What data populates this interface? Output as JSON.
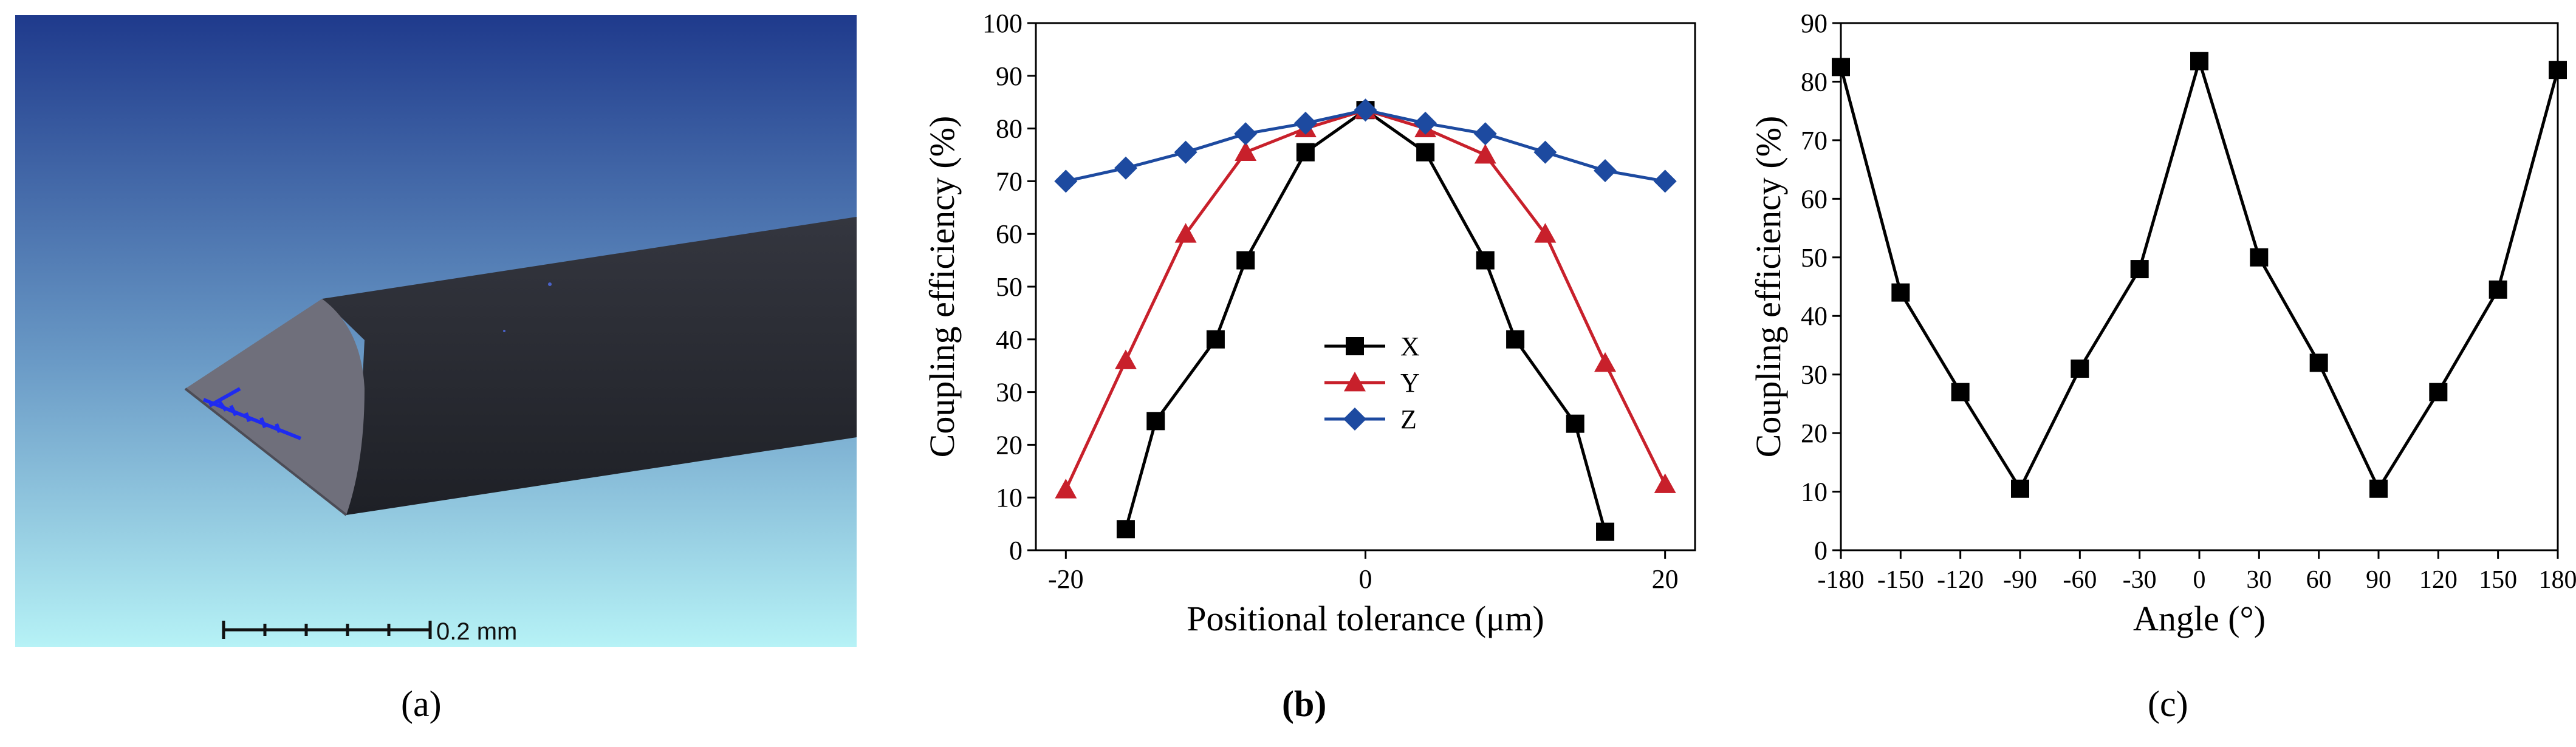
{
  "panel_labels": {
    "a": "(a)",
    "b": "(b)",
    "c": "(c)"
  },
  "panel_a": {
    "scale_bar_label": "0.2 mm",
    "colors": {
      "sky_top": "#1f3a8c",
      "sky_bottom": "#b6f2f6",
      "fiber_body": "#2a2c33",
      "fiber_face": "#6f6f7b",
      "marker": "#1f2bf0"
    }
  },
  "chart_data": [
    {
      "type": "line",
      "title": "",
      "xlabel": "Positional tolerance (μm)",
      "ylabel": "Coupling efficiency (%)",
      "xlim": [
        -22,
        22
      ],
      "ylim": [
        0,
        100
      ],
      "xticks": [
        -20,
        0,
        20
      ],
      "yticks": [
        0,
        10,
        20,
        30,
        40,
        50,
        60,
        70,
        80,
        90,
        100
      ],
      "legend_position": "center",
      "series": [
        {
          "name": "X",
          "marker": "square",
          "color": "#000000",
          "x": [
            -16,
            -14,
            -10,
            -8,
            -4,
            0,
            4,
            8,
            10,
            14,
            16
          ],
          "y": [
            4,
            24.5,
            40,
            55,
            75.5,
            83.5,
            75.5,
            55,
            40,
            24,
            3.5
          ]
        },
        {
          "name": "Y",
          "marker": "triangle",
          "color": "#c8202b",
          "x": [
            -20,
            -16,
            -12,
            -8,
            -4,
            0,
            4,
            8,
            12,
            16,
            20
          ],
          "y": [
            11.5,
            36,
            60,
            75.5,
            80,
            83.5,
            80,
            75,
            60,
            35.5,
            12.5
          ]
        },
        {
          "name": "Z",
          "marker": "diamond",
          "color": "#1d4aa0",
          "x": [
            -20,
            -16,
            -12,
            -8,
            -4,
            0,
            4,
            8,
            12,
            16,
            20
          ],
          "y": [
            70,
            72.5,
            75.5,
            79,
            81,
            83.5,
            81,
            79,
            75.5,
            72,
            70
          ]
        }
      ]
    },
    {
      "type": "line",
      "title": "",
      "xlabel": "Angle (°)",
      "ylabel": "Coupling efficiency (%)",
      "xlim": [
        -180,
        180
      ],
      "ylim": [
        0,
        90
      ],
      "xticks": [
        -180,
        -150,
        -120,
        -90,
        -60,
        -30,
        0,
        30,
        60,
        90,
        120,
        150,
        180
      ],
      "yticks": [
        0,
        10,
        20,
        30,
        40,
        50,
        60,
        70,
        80,
        90
      ],
      "series": [
        {
          "name": "Coupling efficiency",
          "marker": "square",
          "color": "#000000",
          "x": [
            -180,
            -150,
            -120,
            -90,
            -60,
            -30,
            0,
            30,
            60,
            90,
            120,
            150,
            180
          ],
          "y": [
            82.5,
            44,
            27,
            10.5,
            31,
            48,
            83.5,
            50,
            32,
            10.5,
            27,
            44.5,
            82
          ]
        }
      ]
    }
  ]
}
